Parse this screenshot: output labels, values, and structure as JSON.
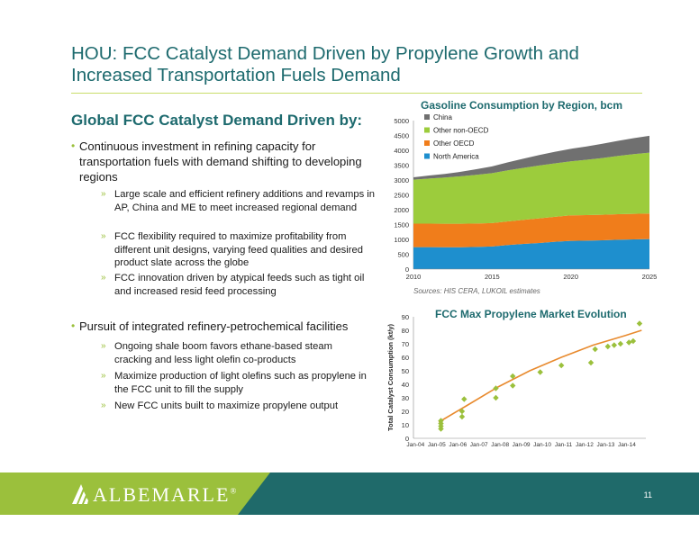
{
  "slide": {
    "title": "HOU: FCC Catalyst Demand Driven by Propylene Growth and Increased Transportation Fuels Demand",
    "section_heading": "Global FCC Catalyst Demand Driven by:",
    "bullets": [
      {
        "text": "Continuous investment in refining capacity for transportation fuels with demand shifting to developing regions",
        "subs": [
          "Large scale and efficient refinery additions and revamps in AP, China and ME to meet increased regional demand",
          "FCC flexibility required to maximize profitability from different unit designs, varying feed qualities and desired product slate across the globe",
          "FCC innovation driven by atypical feeds such as tight oil and increased resid feed processing"
        ]
      },
      {
        "text": "Pursuit of integrated refinery-petrochemical facilities",
        "subs": [
          "Ongoing shale boom favors ethane-based steam cracking and less light olefin co-products",
          "Maximize production of light olefins such as propylene in the FCC unit to fill the supply",
          "New FCC units built to maximize propylene output"
        ]
      }
    ],
    "bullet_marker": "•",
    "sub_marker": "»",
    "source_note": "Sources: HIS CERA, LUKOIL estimates",
    "logo_text": "ALBEMARLE",
    "logo_mark": "®",
    "page_number": "11",
    "colors": {
      "title": "#1d6a6e",
      "accent": "#9bc03c",
      "footer": "#1f6a6a"
    }
  },
  "chart_data": [
    {
      "type": "area",
      "title": "Gasoline Consumption by Region, bcm",
      "xlabel": "",
      "ylabel": "",
      "x": [
        2010,
        2011,
        2012,
        2013,
        2014,
        2015,
        2016,
        2017,
        2018,
        2019,
        2020,
        2021,
        2022,
        2023,
        2024,
        2025
      ],
      "x_ticks": [
        "2010",
        "2015",
        "2020",
        "2025"
      ],
      "y_ticks": [
        "0",
        "500",
        "1000",
        "1500",
        "2000",
        "2500",
        "3000",
        "3500",
        "4000",
        "4500",
        "5000"
      ],
      "ylim": [
        0,
        5000
      ],
      "stacked": true,
      "series": [
        {
          "name": "North America",
          "color": "#1e8fce",
          "values": [
            740,
            740,
            735,
            735,
            745,
            760,
            810,
            850,
            880,
            920,
            950,
            960,
            970,
            990,
            1000,
            1010
          ]
        },
        {
          "name": "Other OECD",
          "color": "#f07d1b",
          "values": [
            790,
            790,
            790,
            790,
            790,
            790,
            795,
            810,
            830,
            840,
            860,
            860,
            860,
            860,
            860,
            860
          ]
        },
        {
          "name": "Other non-OECD",
          "color": "#9ccc3c",
          "values": [
            1480,
            1520,
            1560,
            1600,
            1640,
            1680,
            1720,
            1750,
            1780,
            1800,
            1820,
            1860,
            1910,
            1960,
            2010,
            2050
          ]
        },
        {
          "name": "China",
          "color": "#707070",
          "values": [
            80,
            100,
            120,
            150,
            190,
            230,
            270,
            310,
            350,
            390,
            420,
            450,
            480,
            510,
            540,
            570
          ]
        }
      ],
      "legend": "top-left, reverse order"
    },
    {
      "type": "scatter",
      "title": "FCC Max Propylene Market Evolution",
      "xlabel": "",
      "ylabel": "Total Catalyst Consumption (kt/y)",
      "x_ticks": [
        "Jan-04",
        "Jan-05",
        "Jan-06",
        "Jan-07",
        "Jan-08",
        "Jan-09",
        "Jan-10",
        "Jan-11",
        "Jan-12",
        "Jan-13",
        "Jan-14"
      ],
      "y_ticks": [
        "0",
        "10",
        "20",
        "30",
        "40",
        "50",
        "60",
        "70",
        "80",
        "90"
      ],
      "xlim": [
        2004.0,
        2015.0
      ],
      "ylim": [
        0,
        90
      ],
      "points": [
        [
          2005.3,
          7
        ],
        [
          2005.3,
          9
        ],
        [
          2005.3,
          11
        ],
        [
          2005.3,
          13
        ],
        [
          2006.3,
          16
        ],
        [
          2006.3,
          20
        ],
        [
          2006.4,
          29
        ],
        [
          2007.9,
          30
        ],
        [
          2007.9,
          37
        ],
        [
          2008.7,
          39
        ],
        [
          2008.7,
          46
        ],
        [
          2010.0,
          49
        ],
        [
          2011.0,
          54
        ],
        [
          2012.4,
          56
        ],
        [
          2012.6,
          66
        ],
        [
          2013.2,
          68
        ],
        [
          2013.5,
          69
        ],
        [
          2013.8,
          70
        ],
        [
          2014.2,
          71
        ],
        [
          2014.4,
          72
        ],
        [
          2014.7,
          85
        ]
      ],
      "trend": [
        [
          2005.2,
          12
        ],
        [
          2006.5,
          24
        ],
        [
          2008.0,
          38
        ],
        [
          2009.5,
          50
        ],
        [
          2011.0,
          60
        ],
        [
          2012.5,
          69
        ],
        [
          2014.0,
          76
        ],
        [
          2014.8,
          80
        ]
      ],
      "point_color": "#9bc03c",
      "trend_color": "#e88a2e"
    }
  ]
}
